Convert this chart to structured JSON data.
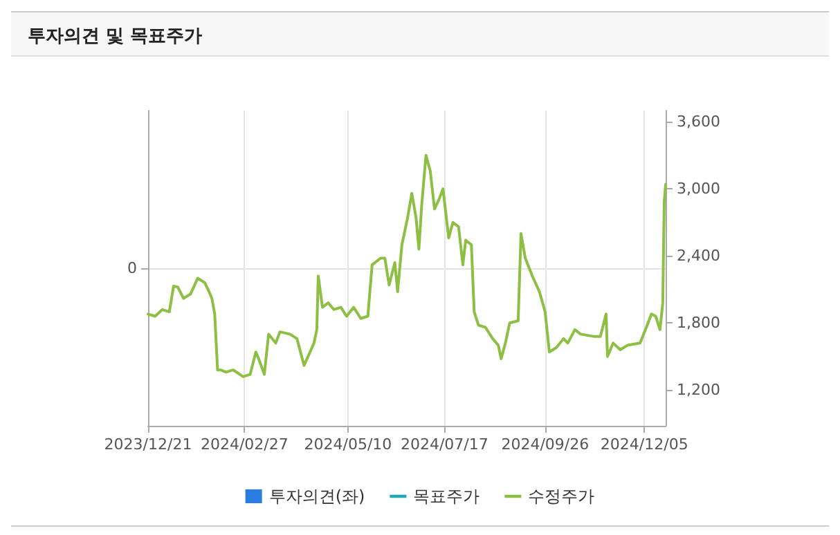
{
  "chart_data": {
    "type": "line",
    "title": "투자의견 및 목표주가",
    "xlim": [
      "2023-12-21",
      "2024-12-20"
    ],
    "xticks": [
      {
        "value": "2023-12-21",
        "label": "2023/12/21"
      },
      {
        "value": "2024-02-27",
        "label": "2024/02/27"
      },
      {
        "value": "2024-05-10",
        "label": "2024/05/10"
      },
      {
        "value": "2024-07-17",
        "label": "2024/07/17"
      },
      {
        "value": "2024-09-26",
        "label": "2024/09/26"
      },
      {
        "value": "2024-12-05",
        "label": "2024/12/05"
      }
    ],
    "ylim": [
      880,
      3700
    ],
    "yticks": [
      {
        "value": 1200,
        "label": "1,200"
      },
      {
        "value": 1800,
        "label": "1,800"
      },
      {
        "value": 2400,
        "label": "2,400"
      },
      {
        "value": 3000,
        "label": "3,000"
      },
      {
        "value": 3600,
        "label": "3,600"
      }
    ],
    "annotations": [
      "0"
    ],
    "grid": true,
    "legend": "bottom",
    "series": [
      {
        "name": "투자의견(좌)",
        "type": "bar",
        "color": "#2a7de1"
      },
      {
        "name": "목표주가",
        "color": "#1fa8b8"
      },
      {
        "name": "수정주가",
        "color": "#8dbf45",
        "x": [
          "2023-12-21",
          "2023-12-26",
          "2023-12-31",
          "2024-01-05",
          "2024-01-08",
          "2024-01-11",
          "2024-01-15",
          "2024-01-20",
          "2024-01-25",
          "2024-01-30",
          "2024-02-02",
          "2024-02-04",
          "2024-02-06",
          "2024-02-08",
          "2024-02-10",
          "2024-02-14",
          "2024-02-19",
          "2024-02-26",
          "2024-03-02",
          "2024-03-06",
          "2024-03-08",
          "2024-03-12",
          "2024-03-15",
          "2024-03-20",
          "2024-03-23",
          "2024-03-30",
          "2024-04-04",
          "2024-04-09",
          "2024-04-16",
          "2024-04-18",
          "2024-04-19",
          "2024-04-22",
          "2024-04-26",
          "2024-04-30",
          "2024-05-05",
          "2024-05-09",
          "2024-05-14",
          "2024-05-19",
          "2024-05-24",
          "2024-05-27",
          "2024-06-02",
          "2024-06-05",
          "2024-06-08",
          "2024-06-12",
          "2024-06-14",
          "2024-06-17",
          "2024-06-21",
          "2024-06-24",
          "2024-06-27",
          "2024-06-29",
          "2024-07-01",
          "2024-07-04",
          "2024-07-07",
          "2024-07-10",
          "2024-07-13",
          "2024-07-16",
          "2024-07-20",
          "2024-07-23",
          "2024-07-27",
          "2024-07-30",
          "2024-08-01",
          "2024-08-05",
          "2024-08-07",
          "2024-08-10",
          "2024-08-15",
          "2024-08-20",
          "2024-08-24",
          "2024-08-26",
          "2024-08-29",
          "2024-09-01",
          "2024-09-07",
          "2024-09-09",
          "2024-09-12",
          "2024-09-17",
          "2024-09-22",
          "2024-09-26",
          "2024-09-29",
          "2024-10-04",
          "2024-10-09",
          "2024-10-12",
          "2024-10-17",
          "2024-10-21",
          "2024-10-30",
          "2024-11-04",
          "2024-11-08",
          "2024-11-09",
          "2024-11-13",
          "2024-11-18",
          "2024-11-23",
          "2024-12-02",
          "2024-12-07",
          "2024-12-10",
          "2024-12-13",
          "2024-12-16",
          "2024-12-18",
          "2024-12-19",
          "2024-12-20"
        ],
        "values": [
          1880,
          1860,
          1920,
          1900,
          2130,
          2120,
          2020,
          2060,
          2200,
          2160,
          2080,
          2020,
          1880,
          1380,
          1380,
          1360,
          1380,
          1320,
          1340,
          1540,
          1480,
          1340,
          1700,
          1620,
          1720,
          1700,
          1660,
          1420,
          1620,
          1740,
          2220,
          1940,
          1980,
          1920,
          1940,
          1860,
          1940,
          1840,
          1860,
          2320,
          2380,
          2380,
          2140,
          2340,
          2080,
          2500,
          2740,
          2960,
          2740,
          2460,
          2860,
          3300,
          3160,
          2820,
          2900,
          3000,
          2560,
          2700,
          2660,
          2320,
          2540,
          2500,
          1900,
          1780,
          1760,
          1660,
          1600,
          1480,
          1620,
          1800,
          1820,
          2600,
          2380,
          2220,
          2080,
          1900,
          1540,
          1580,
          1660,
          1620,
          1740,
          1700,
          1680,
          1680,
          1880,
          1500,
          1620,
          1560,
          1600,
          1620,
          1780,
          1880,
          1860,
          1740,
          1980,
          2880,
          3040
        ]
      }
    ]
  }
}
